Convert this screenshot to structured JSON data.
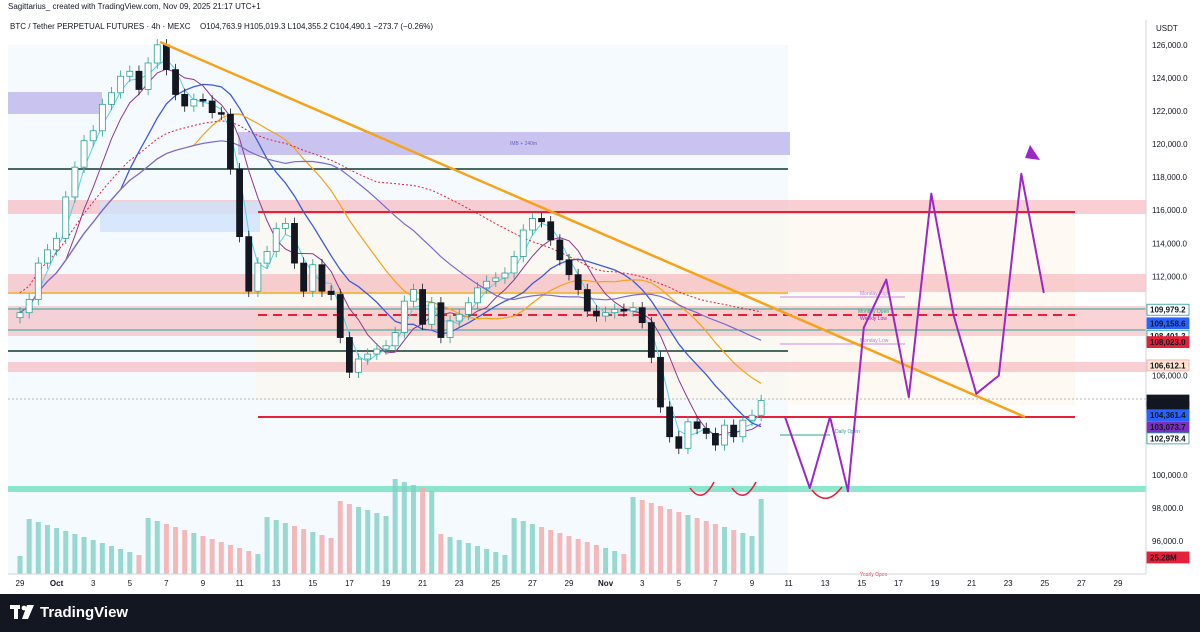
{
  "header": {
    "author_line": "Sagittarius_ created with TradingView.com, Nov 09, 2025 21:17 UTC+1",
    "symbol_line": "BTC / Tether PERPETUAL FUTURES · 4h · MEXC",
    "ohlc_line": "O104,763.9 H105,019.3 L104,355.2 C104,490.1 −273.7 (−0.26%)",
    "currency": "USDT"
  },
  "footer": {
    "brand": "TradingView"
  },
  "colors": {
    "trendline": "#f7a21b",
    "resistance": "#e5203a",
    "support_zone": "#2fd3a2",
    "projection": "#9b27c7",
    "supply_zone": "#f4a8ae",
    "imb_zone": "#b3a9e5",
    "candle_up": "#2aa192",
    "candle_down": "#131722"
  },
  "chart_data": {
    "type": "candlestick",
    "timeframe": "4h",
    "ylim": [
      94000,
      127500
    ],
    "y_ticks": [
      "126,000.0",
      "124,000.0",
      "122,000.0",
      "120,000.0",
      "118,000.0",
      "116,000.0",
      "114,000.0",
      "112,000.0",
      "110,000.0",
      "106,000.0",
      "100,000.0",
      "98,000.0",
      "96,000.0"
    ],
    "x_ticks": [
      "29",
      "Oct",
      "3",
      "5",
      "7",
      "9",
      "11",
      "13",
      "15",
      "17",
      "19",
      "21",
      "23",
      "25",
      "27",
      "29",
      "Nov",
      "3",
      "5",
      "7",
      "9",
      "11",
      "13",
      "15",
      "17",
      "19",
      "21",
      "23",
      "25",
      "27",
      "29"
    ],
    "price_close": [
      [
        29.0,
        109800
      ],
      [
        29.5,
        110600
      ],
      [
        30.0,
        112800
      ],
      [
        30.5,
        113600
      ],
      [
        1.0,
        114300
      ],
      [
        1.5,
        116800
      ],
      [
        2.0,
        118600
      ],
      [
        2.5,
        120200
      ],
      [
        3.0,
        120800
      ],
      [
        3.5,
        122400
      ],
      [
        4.0,
        123100
      ],
      [
        4.5,
        124100
      ],
      [
        5.0,
        124400
      ],
      [
        5.5,
        123300
      ],
      [
        6.0,
        124900
      ],
      [
        6.5,
        126000
      ],
      [
        7.0,
        124500
      ],
      [
        7.5,
        123000
      ],
      [
        8.0,
        122300
      ],
      [
        8.5,
        122700
      ],
      [
        9.0,
        122600
      ],
      [
        9.5,
        121900
      ],
      [
        10.0,
        121800
      ],
      [
        10.5,
        118500
      ],
      [
        11.0,
        114400
      ],
      [
        11.5,
        111100
      ],
      [
        12.0,
        112800
      ],
      [
        12.5,
        113500
      ],
      [
        13.0,
        114900
      ],
      [
        13.5,
        115200
      ],
      [
        14.0,
        112800
      ],
      [
        14.5,
        111100
      ],
      [
        15.0,
        112700
      ],
      [
        15.5,
        111100
      ],
      [
        16.0,
        110900
      ],
      [
        16.5,
        108300
      ],
      [
        17.0,
        106200
      ],
      [
        17.5,
        107000
      ],
      [
        18.0,
        107300
      ],
      [
        18.5,
        107600
      ],
      [
        19.0,
        107800
      ],
      [
        19.5,
        108600
      ],
      [
        20.0,
        110500
      ],
      [
        20.5,
        111200
      ],
      [
        21.0,
        109100
      ],
      [
        21.5,
        110400
      ],
      [
        22.0,
        108300
      ],
      [
        22.5,
        109300
      ],
      [
        23.0,
        109700
      ],
      [
        23.5,
        110400
      ],
      [
        24.0,
        111300
      ],
      [
        24.5,
        111700
      ],
      [
        25.0,
        111900
      ],
      [
        25.5,
        112200
      ],
      [
        26.0,
        113200
      ],
      [
        26.5,
        114800
      ],
      [
        27.0,
        115500
      ],
      [
        27.5,
        115300
      ],
      [
        28.0,
        114200
      ],
      [
        28.5,
        113000
      ],
      [
        29.0,
        112100
      ],
      [
        29.5,
        111200
      ],
      [
        30.0,
        109900
      ],
      [
        30.5,
        109600
      ],
      [
        31.0,
        109800
      ],
      [
        31.5,
        110000
      ],
      [
        32.0,
        109900
      ],
      [
        32.5,
        110100
      ],
      [
        33.0,
        109200
      ],
      [
        33.5,
        107100
      ],
      [
        34.0,
        104100
      ],
      [
        34.5,
        102300
      ],
      [
        35.0,
        101600
      ],
      [
        35.5,
        103200
      ],
      [
        36.0,
        102800
      ],
      [
        36.5,
        102500
      ],
      [
        37.0,
        101800
      ],
      [
        37.5,
        103000
      ],
      [
        38.0,
        102300
      ],
      [
        38.5,
        103300
      ],
      [
        39.0,
        103600
      ],
      [
        39.5,
        104490
      ]
    ],
    "volume_note": "Volume histogram at bottom; last value shown",
    "volume_last": "25.28M",
    "levels": [
      {
        "price": 118500,
        "style": "solid-dark"
      },
      {
        "price": 115900,
        "style": "solid-red"
      },
      {
        "price": 111000,
        "style": "solid-orange"
      },
      {
        "price": 109979.2,
        "style": "solid-teal"
      },
      {
        "price": 109158.6,
        "style": "dashed-red"
      },
      {
        "price": 108401.3,
        "style": "solid-teal"
      },
      {
        "price": 107000,
        "style": "solid-dark"
      },
      {
        "price": 103900,
        "style": "solid-red"
      },
      {
        "price": 99000,
        "style": "support-zone"
      }
    ],
    "annotations": {
      "monday_high": "Monday High",
      "monthly_open": "Monthly Open",
      "weekly_low": "Weekly Low",
      "monday_low": "Monday Low",
      "daily_open": "Daily Open",
      "yearly_open": "Yearly Open",
      "imb_240": "IMB + 240m"
    },
    "price_badges": [
      {
        "label": "109,979.2",
        "price": 109979.2,
        "color": "#ffffff",
        "text": "#2aa192",
        "border": "#2aa192"
      },
      {
        "label": "109,158.6",
        "price": 109158.6,
        "color": "#2962ff",
        "text": "#ffffff",
        "border": "#2962ff"
      },
      {
        "label": "108,401.3",
        "price": 108401.3,
        "color": "#ffffff",
        "text": "#26a69a",
        "border": "#26a69a"
      },
      {
        "label": "108,023.0",
        "price": 108023.0,
        "color": "#e5203a",
        "text": "#ffffff",
        "border": "#e5203a"
      },
      {
        "label": "106,612.1",
        "price": 106612.1,
        "color": "#fbe5d0",
        "text": "#e5203a",
        "border": "#f4a8ae"
      },
      {
        "label": "104,490.1",
        "price": 104490.1,
        "color": "#131722",
        "text": "#ffffff",
        "border": "#131722"
      },
      {
        "label": "03:42:01",
        "price": 104100,
        "color": "#131722",
        "text": "#ffffff",
        "border": "#131722"
      },
      {
        "label": "104,361.4",
        "price": 103600,
        "color": "#2962ff",
        "text": "#ffffff",
        "border": "#2962ff"
      },
      {
        "label": "103,073.7",
        "price": 102880,
        "color": "#7b2fc2",
        "text": "#ffffff",
        "border": "#7b2fc2"
      },
      {
        "label": "102,978.4",
        "price": 102200,
        "color": "#ffffff",
        "text": "#2aa192",
        "border": "#2aa192"
      },
      {
        "label": "25.28M",
        "price": 95000,
        "color": "#e5203a",
        "text": "#ffffff",
        "border": "#e5203a"
      }
    ],
    "projection_path": [
      [
        39.5,
        103500
      ],
      [
        40.6,
        99200
      ],
      [
        41.5,
        103500
      ],
      [
        42.3,
        99000
      ],
      [
        43.0,
        108900
      ],
      [
        44.0,
        111800
      ],
      [
        45.0,
        104700
      ],
      [
        46.0,
        117000
      ],
      [
        47.0,
        109600
      ],
      [
        48.0,
        104900
      ],
      [
        49.0,
        106000
      ],
      [
        50.0,
        118200
      ],
      [
        51.0,
        111000
      ]
    ]
  }
}
